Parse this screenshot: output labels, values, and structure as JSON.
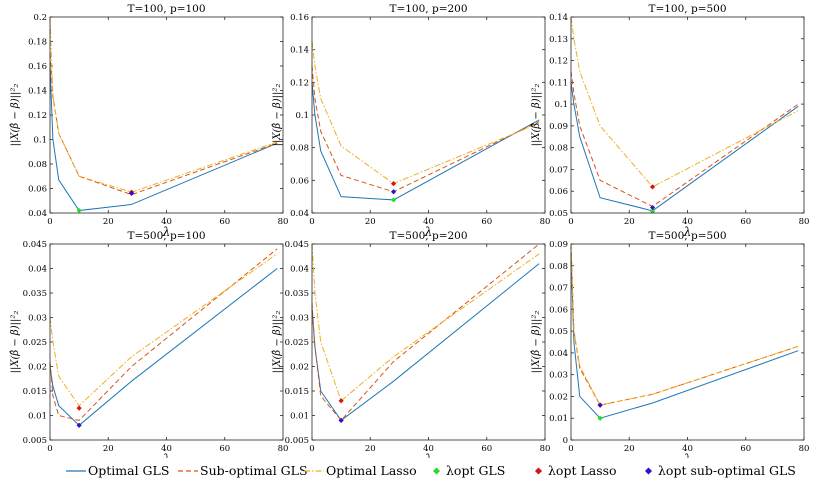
{
  "chart_data": [
    {
      "type": "line",
      "title": "T=100, p=100",
      "xlabel": "λ",
      "ylabel": "||X(β̂ − β)||²₂",
      "xlim": [
        0,
        80
      ],
      "ylim": [
        0.04,
        0.2
      ],
      "xticks": [
        0,
        20,
        40,
        60,
        80
      ],
      "yticks": [
        0.04,
        0.06,
        0.08,
        0.1,
        0.12,
        0.14,
        0.16,
        0.18,
        0.2
      ],
      "ytick_labels": [
        "0.04",
        "0.06",
        "0.08",
        "0.1",
        "0.12",
        "0.14",
        "0.16",
        "0.18",
        "0.2"
      ],
      "x": [
        0,
        1,
        3,
        10,
        28,
        78
      ],
      "series": [
        {
          "name": "Optimal GLS",
          "values": [
            0.16,
            0.1,
            0.067,
            0.042,
            0.047,
            0.097
          ]
        },
        {
          "name": "Sub-optimal GLS",
          "values": [
            0.17,
            0.135,
            0.105,
            0.07,
            0.055,
            0.097
          ]
        },
        {
          "name": "Optimal Lasso",
          "values": [
            0.2,
            0.135,
            0.105,
            0.07,
            0.057,
            0.098
          ]
        }
      ],
      "markers": [
        {
          "name": "λopt GLS",
          "x": 10,
          "y": 0.042
        },
        {
          "name": "λopt Lasso",
          "x": 28,
          "y": 0.057
        },
        {
          "name": "λopt sub-optimal GLS",
          "x": 28,
          "y": 0.056
        }
      ]
    },
    {
      "type": "line",
      "title": "T=100, p=200",
      "xlabel": "λ",
      "ylabel": "||X(β̂ − β)||²₂",
      "xlim": [
        0,
        80
      ],
      "ylim": [
        0.04,
        0.16
      ],
      "xticks": [
        0,
        20,
        40,
        60,
        80
      ],
      "yticks": [
        0.04,
        0.06,
        0.08,
        0.1,
        0.12,
        0.14,
        0.16
      ],
      "ytick_labels": [
        "0.04",
        "0.06",
        "0.08",
        "0.1",
        "0.12",
        "0.14",
        "0.16"
      ],
      "x": [
        0,
        1,
        3,
        10,
        28,
        78
      ],
      "series": [
        {
          "name": "Optimal GLS",
          "values": [
            0.12,
            0.1,
            0.078,
            0.05,
            0.048,
            0.097
          ]
        },
        {
          "name": "Sub-optimal GLS",
          "values": [
            0.13,
            0.11,
            0.09,
            0.063,
            0.053,
            0.096
          ]
        },
        {
          "name": "Optimal Lasso",
          "values": [
            0.145,
            0.13,
            0.11,
            0.081,
            0.058,
            0.095
          ]
        }
      ],
      "markers": [
        {
          "name": "λopt GLS",
          "x": 28,
          "y": 0.048
        },
        {
          "name": "λopt Lasso",
          "x": 28,
          "y": 0.058
        },
        {
          "name": "λopt sub-optimal GLS",
          "x": 28,
          "y": 0.053
        }
      ]
    },
    {
      "type": "line",
      "title": "T=100, p=500",
      "xlabel": "λ",
      "ylabel": "||X(β̂ − β)||²₂",
      "xlim": [
        0,
        80
      ],
      "ylim": [
        0.05,
        0.14
      ],
      "xticks": [
        0,
        20,
        40,
        60,
        80
      ],
      "yticks": [
        0.05,
        0.06,
        0.07,
        0.08,
        0.09,
        0.1,
        0.11,
        0.12,
        0.13,
        0.14
      ],
      "ytick_labels": [
        "0.05",
        "0.06",
        "0.07",
        "0.08",
        "0.09",
        "0.1",
        "0.11",
        "0.12",
        "0.13",
        "0.14"
      ],
      "x": [
        0,
        1,
        3,
        10,
        28,
        78
      ],
      "series": [
        {
          "name": "Optimal GLS",
          "values": [
            0.11,
            0.1,
            0.085,
            0.057,
            0.051,
            0.099
          ]
        },
        {
          "name": "Sub-optimal GLS",
          "values": [
            0.115,
            0.105,
            0.09,
            0.065,
            0.053,
            0.1
          ]
        },
        {
          "name": "Optimal Lasso",
          "values": [
            0.14,
            0.13,
            0.115,
            0.09,
            0.062,
            0.097
          ]
        }
      ],
      "markers": [
        {
          "name": "λopt GLS",
          "x": 28,
          "y": 0.0508
        },
        {
          "name": "λopt Lasso",
          "x": 28,
          "y": 0.062
        },
        {
          "name": "λopt sub-optimal GLS",
          "x": 28,
          "y": 0.0525
        }
      ]
    },
    {
      "type": "line",
      "title": "T=500, p=100",
      "xlabel": "λ",
      "ylabel": "||X(β̂ − β)||²₂",
      "xlim": [
        0,
        80
      ],
      "ylim": [
        0.005,
        0.045
      ],
      "xticks": [
        0,
        20,
        40,
        60,
        80
      ],
      "yticks": [
        0.005,
        0.01,
        0.015,
        0.02,
        0.025,
        0.03,
        0.035,
        0.04,
        0.045
      ],
      "ytick_labels": [
        "0.005",
        "0.01",
        "0.015",
        "0.02",
        "0.025",
        "0.03",
        "0.035",
        "0.04",
        "0.045"
      ],
      "x": [
        0,
        1,
        3,
        10,
        28,
        78
      ],
      "series": [
        {
          "name": "Optimal GLS",
          "values": [
            0.02,
            0.016,
            0.012,
            0.008,
            0.017,
            0.04
          ]
        },
        {
          "name": "Sub-optimal GLS",
          "values": [
            0.021,
            0.014,
            0.01,
            0.009,
            0.02,
            0.044
          ]
        },
        {
          "name": "Optimal Lasso",
          "values": [
            0.03,
            0.025,
            0.018,
            0.012,
            0.022,
            0.043
          ]
        }
      ],
      "markers": [
        {
          "name": "λopt GLS",
          "x": 10,
          "y": 0.008
        },
        {
          "name": "λopt Lasso",
          "x": 10,
          "y": 0.0115
        },
        {
          "name": "λopt sub-optimal GLS",
          "x": 10,
          "y": 0.008
        }
      ]
    },
    {
      "type": "line",
      "title": "T=500, p=200",
      "xlabel": "λ",
      "ylabel": "||X(β̂ − β)||²₂",
      "xlim": [
        0,
        80
      ],
      "ylim": [
        0.005,
        0.045
      ],
      "xticks": [
        0,
        20,
        40,
        60,
        80
      ],
      "yticks": [
        0.005,
        0.01,
        0.015,
        0.02,
        0.025,
        0.03,
        0.035,
        0.04,
        0.045
      ],
      "ytick_labels": [
        "0.005",
        "0.01",
        "0.015",
        "0.02",
        "0.025",
        "0.03",
        "0.035",
        "0.04",
        "0.045"
      ],
      "x": [
        0,
        1,
        3,
        10,
        28,
        78
      ],
      "series": [
        {
          "name": "Optimal GLS",
          "values": [
            0.032,
            0.024,
            0.015,
            0.009,
            0.017,
            0.041
          ]
        },
        {
          "name": "Sub-optimal GLS",
          "values": [
            0.033,
            0.024,
            0.014,
            0.009,
            0.021,
            0.045
          ]
        },
        {
          "name": "Optimal Lasso",
          "values": [
            0.045,
            0.035,
            0.025,
            0.013,
            0.022,
            0.043
          ]
        }
      ],
      "markers": [
        {
          "name": "λopt GLS",
          "x": 10,
          "y": 0.009
        },
        {
          "name": "λopt Lasso",
          "x": 10,
          "y": 0.013
        },
        {
          "name": "λopt sub-optimal GLS",
          "x": 10,
          "y": 0.009
        }
      ]
    },
    {
      "type": "line",
      "title": "T=500, p=500",
      "xlabel": "λ",
      "ylabel": "||X(β̂ − β)||²₂",
      "xlim": [
        0,
        80
      ],
      "ylim": [
        0,
        0.09
      ],
      "xticks": [
        0,
        20,
        40,
        60,
        80
      ],
      "yticks": [
        0,
        0.01,
        0.02,
        0.03,
        0.04,
        0.05,
        0.06,
        0.07,
        0.08,
        0.09
      ],
      "ytick_labels": [
        "0",
        "0.01",
        "0.02",
        "0.03",
        "0.04",
        "0.05",
        "0.06",
        "0.07",
        "0.08",
        "0.09"
      ],
      "x": [
        0,
        1,
        3,
        10,
        28,
        78
      ],
      "series": [
        {
          "name": "Optimal GLS",
          "values": [
            0.085,
            0.045,
            0.02,
            0.01,
            0.017,
            0.041
          ]
        },
        {
          "name": "Sub-optimal GLS",
          "values": [
            0.09,
            0.05,
            0.033,
            0.016,
            0.021,
            0.043
          ]
        },
        {
          "name": "Optimal Lasso",
          "values": [
            0.09,
            0.05,
            0.034,
            0.016,
            0.021,
            0.043
          ]
        }
      ],
      "markers": [
        {
          "name": "λopt GLS",
          "x": 10,
          "y": 0.01
        },
        {
          "name": "λopt Lasso",
          "x": 10,
          "y": 0.016
        },
        {
          "name": "λopt sub-optimal GLS",
          "x": 10,
          "y": 0.016
        }
      ]
    }
  ],
  "legend": {
    "placement": "bottom",
    "entries": [
      {
        "label": "Optimal GLS",
        "style": "solid",
        "color": "#1f77b4"
      },
      {
        "label": "Sub-optimal GLS",
        "style": "dashed",
        "color": "#d95319"
      },
      {
        "label": "Optimal Lasso",
        "style": "dashdot",
        "color": "#edb120"
      },
      {
        "label": "λopt GLS",
        "style": "marker",
        "color": "#22dd22"
      },
      {
        "label": "λopt Lasso",
        "style": "marker",
        "color": "#dd1111"
      },
      {
        "label": "λopt sub-optimal GLS",
        "style": "marker",
        "color": "#3311cc"
      }
    ]
  },
  "colors": {
    "optimal_gls": "#1f77b4",
    "suboptimal_gls": "#d95319",
    "optimal_lasso": "#edb120",
    "marker_gls": "#22dd22",
    "marker_lasso": "#dd1111",
    "marker_sub": "#3311cc"
  }
}
